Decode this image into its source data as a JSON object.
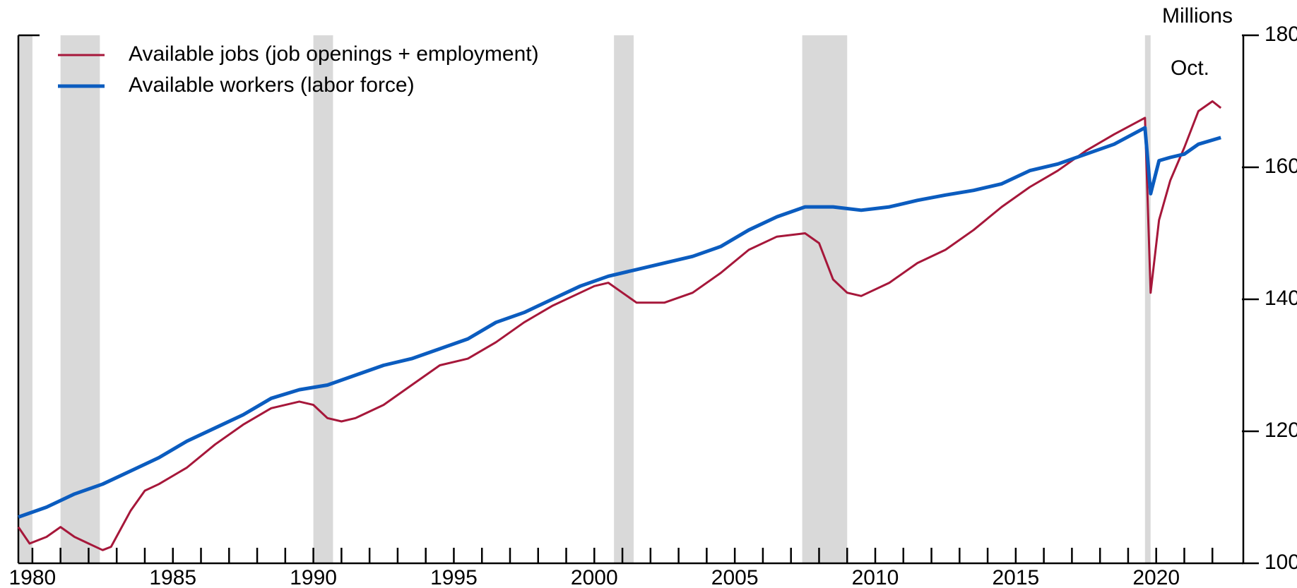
{
  "chart_data": {
    "type": "line",
    "y_label": "Millions",
    "annotation": "Oct.",
    "xlim": [
      1980.0,
      2023.6
    ],
    "xticks": [
      {
        "value": 1980.5,
        "label": "1980"
      },
      {
        "value": 1985.5,
        "label": "1985"
      },
      {
        "value": 1990.5,
        "label": "1990"
      },
      {
        "value": 1995.5,
        "label": "1995"
      },
      {
        "value": 2000.5,
        "label": "2000"
      },
      {
        "value": 2005.5,
        "label": "2005"
      },
      {
        "value": 2010.5,
        "label": "2010"
      },
      {
        "value": 2015.5,
        "label": "2015"
      },
      {
        "value": 2020.5,
        "label": "2020"
      }
    ],
    "xminorticks": [
      1981.5,
      1982.5,
      1983.5,
      1984.5,
      1986.5,
      1987.5,
      1988.5,
      1989.5,
      1991.5,
      1992.5,
      1993.5,
      1994.5,
      1996.5,
      1997.5,
      1998.5,
      1999.5,
      2001.5,
      2002.5,
      2003.5,
      2004.5,
      2006.5,
      2007.5,
      2008.5,
      2009.5,
      2011.5,
      2012.5,
      2013.5,
      2014.5,
      2016.5,
      2017.5,
      2018.5,
      2019.5,
      2021.5,
      2022.5
    ],
    "ylim": [
      100,
      180
    ],
    "yticks": [
      100,
      120,
      140,
      160,
      180
    ],
    "recessions": [
      [
        1980.0,
        1980.5
      ],
      [
        1981.5,
        1982.9
      ],
      [
        1990.5,
        1991.2
      ],
      [
        2001.2,
        2001.9
      ],
      [
        2007.9,
        2009.5
      ],
      [
        2020.1,
        2020.3
      ]
    ],
    "recession_color": "#d9d9d9",
    "series": [
      {
        "name": "Available jobs (job openings + employment)",
        "color": "#a6173a",
        "width": 3,
        "x": [
          1980.0,
          1980.4,
          1981.0,
          1981.5,
          1982.0,
          1982.5,
          1983.0,
          1983.3,
          1984.0,
          1984.5,
          1985.0,
          1986.0,
          1987.0,
          1988.0,
          1989.0,
          1990.0,
          1990.5,
          1991.0,
          1991.5,
          1992.0,
          1993.0,
          1994.0,
          1995.0,
          1996.0,
          1997.0,
          1998.0,
          1999.0,
          2000.0,
          2000.5,
          2001.0,
          2001.5,
          2002.0,
          2003.0,
          2004.0,
          2005.0,
          2006.0,
          2007.0,
          2008.0,
          2008.5,
          2009.0,
          2009.5,
          2010.0,
          2011.0,
          2012.0,
          2013.0,
          2014.0,
          2015.0,
          2016.0,
          2017.0,
          2018.0,
          2019.0,
          2020.1,
          2020.3,
          2020.6,
          2021.0,
          2021.5,
          2022.0,
          2022.5,
          2022.8
        ],
        "values": [
          105.5,
          103,
          104,
          105.5,
          104,
          103,
          102,
          102.5,
          108,
          111,
          112,
          114.5,
          118,
          121,
          123.5,
          124.5,
          124,
          122,
          121.5,
          122,
          124,
          127,
          130,
          131,
          133.5,
          136.5,
          139,
          141,
          142,
          142.5,
          141,
          139.5,
          139.5,
          141,
          144,
          147.5,
          149.5,
          150,
          148.5,
          143,
          141,
          140.5,
          142.5,
          145.5,
          147.5,
          150.5,
          154,
          157,
          159.5,
          162.5,
          165,
          167.5,
          141,
          152,
          158,
          163,
          168.5,
          170,
          169
        ]
      },
      {
        "name": "Available workers (labor force)",
        "color": "#0b5cbf",
        "width": 5,
        "x": [
          1980.0,
          1981.0,
          1982.0,
          1983.0,
          1984.0,
          1985.0,
          1986.0,
          1987.0,
          1988.0,
          1989.0,
          1990.0,
          1991.0,
          1992.0,
          1993.0,
          1994.0,
          1995.0,
          1996.0,
          1997.0,
          1998.0,
          1999.0,
          2000.0,
          2001.0,
          2002.0,
          2003.0,
          2004.0,
          2005.0,
          2006.0,
          2007.0,
          2008.0,
          2009.0,
          2010.0,
          2011.0,
          2012.0,
          2013.0,
          2014.0,
          2015.0,
          2016.0,
          2017.0,
          2018.0,
          2019.0,
          2020.1,
          2020.3,
          2020.6,
          2021.0,
          2021.5,
          2022.0,
          2022.8
        ],
        "values": [
          107,
          108.5,
          110.5,
          112,
          114,
          116,
          118.5,
          120.5,
          122.5,
          125,
          126.3,
          127,
          128.5,
          130,
          131,
          132.5,
          134,
          136.5,
          138,
          140,
          142,
          143.5,
          144.5,
          145.5,
          146.5,
          148,
          150.5,
          152.5,
          154,
          154,
          153.5,
          154,
          155,
          155.8,
          156.5,
          157.5,
          159.5,
          160.5,
          162,
          163.5,
          166,
          156,
          161,
          161.5,
          162,
          163.5,
          164.5
        ]
      }
    ]
  }
}
